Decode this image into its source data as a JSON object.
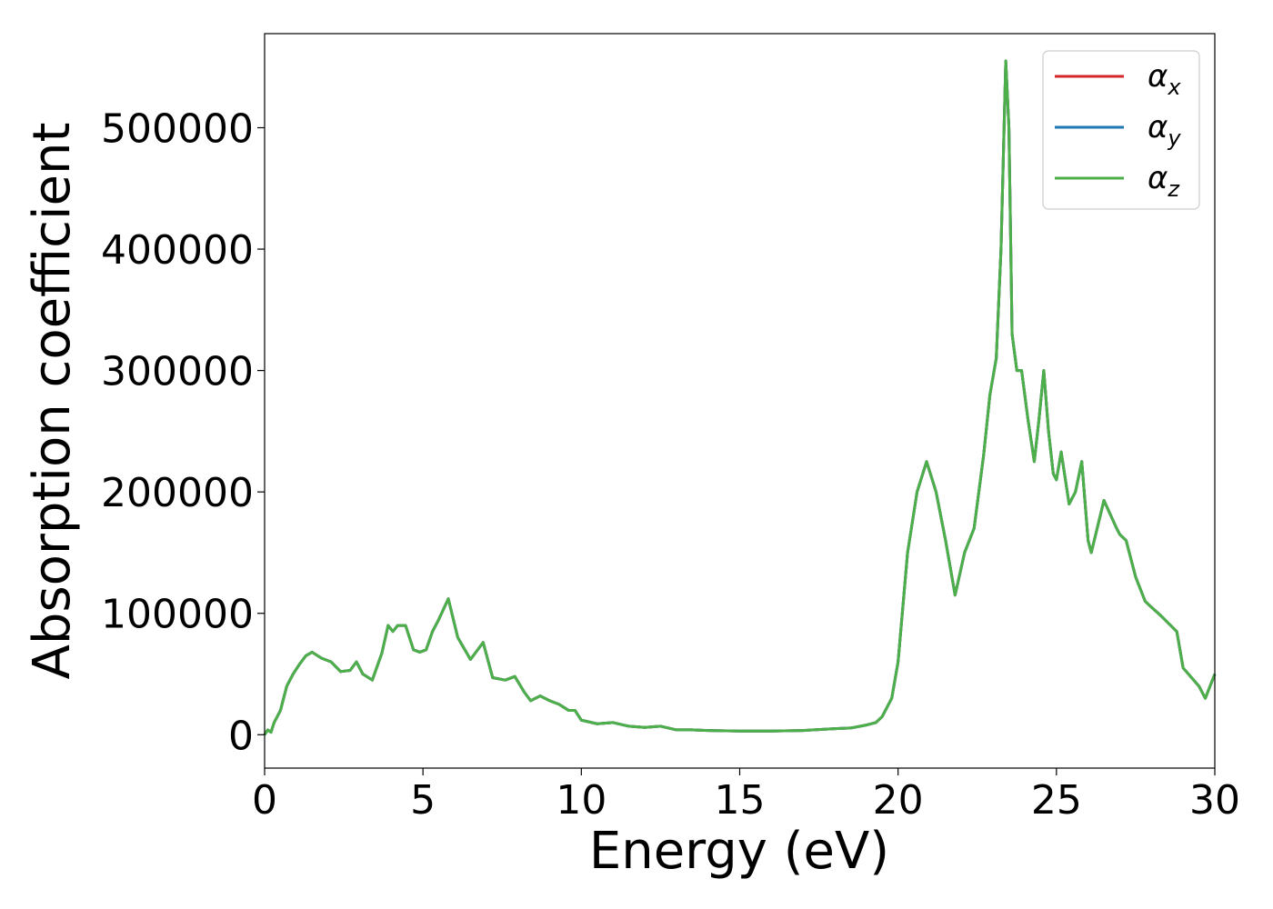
{
  "chart_data": {
    "type": "line",
    "xlabel": "Energy (eV)",
    "ylabel": "Absorption coefficient",
    "xlim": [
      0,
      30
    ],
    "ylim": [
      -27500,
      577500
    ],
    "xticks": [
      0,
      5,
      10,
      15,
      20,
      25,
      30
    ],
    "yticks": [
      0,
      100000,
      200000,
      300000,
      400000,
      500000
    ],
    "grid": false,
    "legend": {
      "position": "top-right"
    },
    "series": [
      {
        "name": "α",
        "subscript": "x",
        "color": "#d62728",
        "ref": "shared"
      },
      {
        "name": "α",
        "subscript": "y",
        "color": "#1f77b4",
        "ref": "shared"
      },
      {
        "name": "α",
        "subscript": "z",
        "color": "#4daf4a",
        "ref": "shared"
      }
    ],
    "x": [
      0,
      0.1,
      0.2,
      0.3,
      0.5,
      0.7,
      0.9,
      1.1,
      1.3,
      1.5,
      1.8,
      2.1,
      2.4,
      2.7,
      2.9,
      3.1,
      3.4,
      3.7,
      3.9,
      4.05,
      4.2,
      4.45,
      4.7,
      4.9,
      5.1,
      5.3,
      5.5,
      5.8,
      6.1,
      6.5,
      6.9,
      7.2,
      7.6,
      7.9,
      8.2,
      8.4,
      8.7,
      9.0,
      9.3,
      9.6,
      9.8,
      10.0,
      10.5,
      11.0,
      11.5,
      12.0,
      12.5,
      13.0,
      13.5,
      14.0,
      15.0,
      16.0,
      17.0,
      18.0,
      18.5,
      19.0,
      19.3,
      19.5,
      19.8,
      20.0,
      20.3,
      20.6,
      20.9,
      21.2,
      21.5,
      21.8,
      22.1,
      22.4,
      22.7,
      22.9,
      23.1,
      23.25,
      23.4,
      23.5,
      23.6,
      23.75,
      23.9,
      24.0,
      24.1,
      24.3,
      24.45,
      24.6,
      24.75,
      24.9,
      25.0,
      25.15,
      25.4,
      25.6,
      25.8,
      26.0,
      26.1,
      26.5,
      26.9,
      27.0,
      27.2,
      27.5,
      27.8,
      28.0,
      28.3,
      28.8,
      29.0,
      29.5,
      29.7,
      30.0
    ],
    "y": [
      0,
      4000,
      2000,
      10000,
      20000,
      40000,
      50000,
      58000,
      65000,
      68000,
      63000,
      60000,
      52000,
      53000,
      60000,
      50000,
      45000,
      67000,
      90000,
      85000,
      90000,
      90000,
      70000,
      68000,
      70000,
      85000,
      95000,
      112000,
      80000,
      62000,
      76000,
      47000,
      45000,
      48000,
      35000,
      28000,
      32000,
      28000,
      25000,
      20000,
      20000,
      12000,
      9000,
      10000,
      7000,
      6000,
      7000,
      4000,
      4000,
      3500,
      3000,
      3000,
      3500,
      5000,
      5500,
      8000,
      10000,
      15000,
      30000,
      60000,
      150000,
      200000,
      225000,
      200000,
      160000,
      115000,
      150000,
      170000,
      230000,
      280000,
      310000,
      400000,
      555000,
      500000,
      330000,
      300000,
      300000,
      280000,
      260000,
      225000,
      260000,
      300000,
      250000,
      215000,
      210000,
      233000,
      190000,
      200000,
      225000,
      160000,
      150000,
      193000,
      170000,
      165000,
      160000,
      130000,
      110000,
      105000,
      98000,
      85000,
      55000,
      40000,
      30000,
      50000
    ]
  }
}
